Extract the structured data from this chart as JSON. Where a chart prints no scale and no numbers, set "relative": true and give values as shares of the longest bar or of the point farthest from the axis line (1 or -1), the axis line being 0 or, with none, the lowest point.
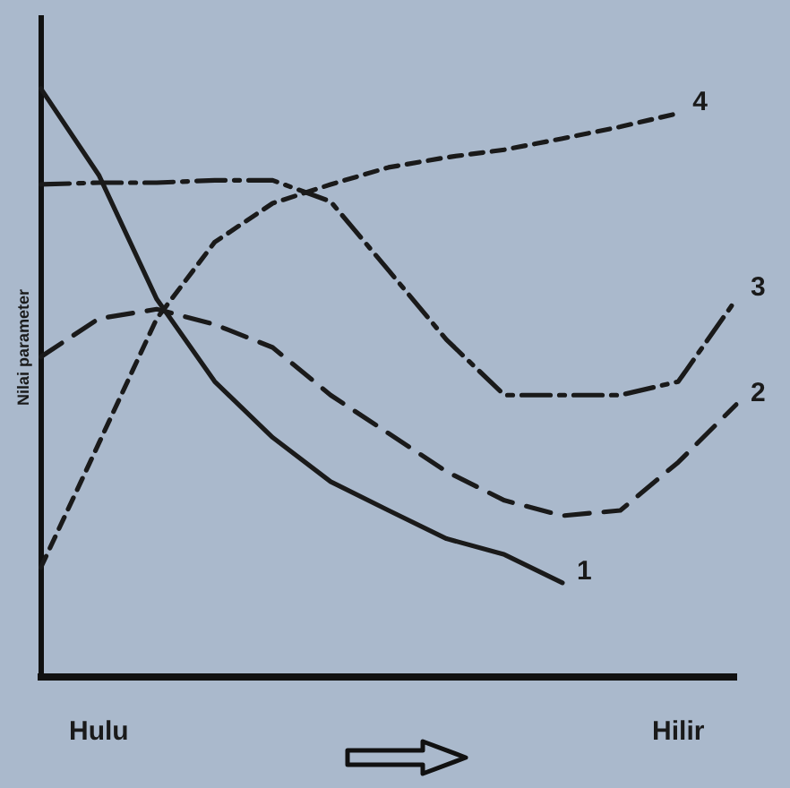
{
  "chart_data": {
    "type": "line",
    "ylabel": "Nilai parameter",
    "relative": true,
    "categories": [
      null,
      "Hulu",
      null,
      null,
      null,
      null,
      null,
      null,
      null,
      null,
      null,
      "Hilir",
      null
    ],
    "tick_labels": "x",
    "legend": false,
    "grid": false,
    "marker": "none",
    "series": [
      {
        "name": "1",
        "color": "#1a1a1a",
        "line_style": "solid",
        "values": [
          1.0,
          0.853,
          0.642,
          0.502,
          0.407,
          0.332,
          0.283,
          0.235,
          0.208,
          0.16,
          null,
          null,
          null
        ]
      },
      {
        "name": "2",
        "color": "#1a1a1a",
        "line_style": "dashed",
        "values": [
          0.544,
          0.609,
          0.625,
          0.599,
          0.56,
          0.479,
          0.414,
          0.349,
          0.3,
          0.274,
          0.283,
          0.365,
          0.463
        ]
      },
      {
        "name": "3",
        "color": "#1a1a1a",
        "line_style": "dashed",
        "values": [
          0.837,
          0.84,
          0.84,
          0.844,
          0.844,
          0.808,
          0.691,
          0.573,
          0.479,
          0.479,
          0.479,
          0.502,
          0.642
        ]
      },
      {
        "name": "4",
        "color": "#1a1a1a",
        "line_style": "dashed",
        "values": [
          0.186,
          0.397,
          0.609,
          0.739,
          0.805,
          0.837,
          0.866,
          0.883,
          0.896,
          0.915,
          0.935,
          0.958,
          null
        ]
      }
    ]
  }
}
